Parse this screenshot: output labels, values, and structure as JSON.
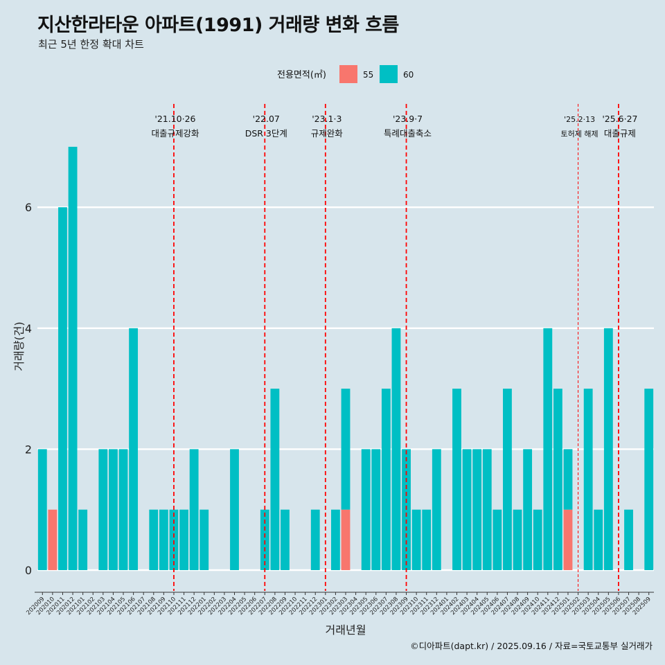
{
  "title": "지산한라타운 아파트(1991) 거래량 변화 흐름",
  "subtitle": "최근 5년 한정 확대 차트",
  "caption": "©디아파트(dapt.kr) / 2025.09.16 / 자료=국토교통부 실거래가",
  "colors": {
    "background": "#d7e5ec",
    "s55": "#f8766d",
    "s60": "#00bfc4",
    "event_line": "#ff0000",
    "grid": "#ffffff"
  },
  "chart_data": {
    "type": "bar",
    "stacked": true,
    "xlabel": "거래년월",
    "ylabel": "거래량(건)",
    "ylim": [
      0,
      7
    ],
    "yticks": [
      0,
      2,
      4,
      6
    ],
    "legend": {
      "title": "전용면적(㎡)",
      "position": "top"
    },
    "categories": [
      "202009",
      "202010",
      "202011",
      "202012",
      "202101",
      "202102",
      "202103",
      "202104",
      "202105",
      "202106",
      "202107",
      "202108",
      "202109",
      "202110",
      "202111",
      "202112",
      "202201",
      "202202",
      "202203",
      "202204",
      "202205",
      "202206",
      "202207",
      "202208",
      "202209",
      "202210",
      "202211",
      "202212",
      "202301",
      "202302",
      "202303",
      "202304",
      "202305",
      "202306",
      "202307",
      "202308",
      "202309",
      "202310",
      "202311",
      "202312",
      "202401",
      "202402",
      "202403",
      "202404",
      "202405",
      "202406",
      "202407",
      "202408",
      "202409",
      "202410",
      "202411",
      "202412",
      "202501",
      "202502",
      "202503",
      "202504",
      "202505",
      "202506",
      "202507",
      "202508",
      "202509"
    ],
    "series": [
      {
        "name": "55",
        "values": [
          0,
          1,
          0,
          0,
          0,
          0,
          0,
          0,
          0,
          0,
          0,
          0,
          0,
          0,
          0,
          0,
          0,
          0,
          0,
          0,
          0,
          0,
          0,
          0,
          0,
          0,
          0,
          0,
          0,
          0,
          1,
          0,
          0,
          0,
          0,
          0,
          0,
          0,
          0,
          0,
          0,
          0,
          0,
          0,
          0,
          0,
          0,
          0,
          0,
          0,
          0,
          0,
          1,
          0,
          0,
          0,
          0,
          0,
          0,
          0,
          0
        ]
      },
      {
        "name": "60",
        "values": [
          2,
          0,
          6,
          7,
          1,
          0,
          2,
          2,
          2,
          4,
          0,
          1,
          1,
          1,
          1,
          2,
          1,
          0,
          0,
          2,
          0,
          0,
          1,
          3,
          1,
          0,
          0,
          1,
          0,
          1,
          2,
          0,
          2,
          2,
          3,
          4,
          2,
          1,
          1,
          2,
          0,
          3,
          2,
          2,
          2,
          1,
          3,
          1,
          2,
          1,
          4,
          3,
          1,
          0,
          3,
          1,
          4,
          0,
          1,
          0,
          3
        ]
      }
    ],
    "annotations": [
      {
        "at": "202110",
        "date": "'21.10·26",
        "label": "대출규제강화",
        "style": "dashed"
      },
      {
        "at": "202207",
        "date": "'22.07",
        "label": "DSR 3단계",
        "style": "dashed"
      },
      {
        "at": "202301",
        "date": "'23.1·3",
        "label": "규제완화",
        "style": "dashed"
      },
      {
        "at": "202309",
        "date": "'23.9·7",
        "label": "특례대출축소",
        "style": "dashed"
      },
      {
        "at": "202502",
        "date": "'25.2·13",
        "label": "토허제 해제",
        "style": "thin-dashed"
      },
      {
        "at": "202506",
        "date": "'25.6·27",
        "label": "대출규제",
        "style": "dashed"
      }
    ]
  }
}
